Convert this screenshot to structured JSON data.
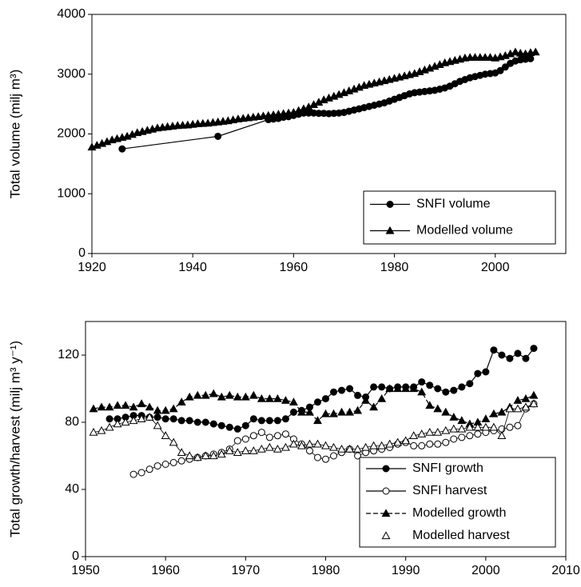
{
  "chart_data": [
    {
      "type": "line",
      "ylabel": "Total volume (milj m³)",
      "xlim": [
        1920,
        2014
      ],
      "xticks": [
        1920,
        1940,
        1960,
        1980,
        2000
      ],
      "ylim": [
        0,
        4000
      ],
      "yticks": [
        0,
        1000,
        2000,
        3000,
        4000
      ],
      "legend": "lower right",
      "series": [
        {
          "name": "SNFI volume",
          "color": "#000000",
          "marker": "circle",
          "filled": true,
          "dash": false,
          "x": [
            1926,
            1945,
            1955,
            1956,
            1957,
            1958,
            1959,
            1960,
            1961,
            1962,
            1963,
            1964,
            1965,
            1966,
            1967,
            1968,
            1969,
            1970,
            1971,
            1972,
            1973,
            1974,
            1975,
            1976,
            1977,
            1978,
            1979,
            1980,
            1981,
            1982,
            1983,
            1984,
            1985,
            1986,
            1987,
            1988,
            1989,
            1990,
            1991,
            1992,
            1993,
            1994,
            1995,
            1996,
            1997,
            1998,
            1999,
            2000,
            2001,
            2002,
            2003,
            2004,
            2005,
            2006,
            2007
          ],
          "values": [
            1750,
            1960,
            2240,
            2250,
            2260,
            2280,
            2290,
            2310,
            2330,
            2350,
            2350,
            2350,
            2345,
            2345,
            2340,
            2345,
            2350,
            2360,
            2380,
            2400,
            2420,
            2440,
            2460,
            2480,
            2500,
            2520,
            2550,
            2580,
            2610,
            2640,
            2670,
            2690,
            2700,
            2710,
            2720,
            2730,
            2750,
            2770,
            2800,
            2840,
            2880,
            2910,
            2940,
            2960,
            2980,
            3000,
            3010,
            3020,
            3060,
            3120,
            3180,
            3220,
            3240,
            3250,
            3260
          ]
        },
        {
          "name": "Modelled volume",
          "color": "#000000",
          "marker": "triangle",
          "filled": true,
          "dash": false,
          "x": [
            1920,
            1921,
            1922,
            1923,
            1924,
            1925,
            1926,
            1927,
            1928,
            1929,
            1930,
            1931,
            1932,
            1933,
            1934,
            1935,
            1936,
            1937,
            1938,
            1939,
            1940,
            1941,
            1942,
            1943,
            1944,
            1945,
            1946,
            1947,
            1948,
            1949,
            1950,
            1951,
            1952,
            1953,
            1954,
            1955,
            1956,
            1957,
            1958,
            1959,
            1960,
            1961,
            1962,
            1963,
            1964,
            1965,
            1966,
            1967,
            1968,
            1969,
            1970,
            1971,
            1972,
            1973,
            1974,
            1975,
            1976,
            1977,
            1978,
            1979,
            1980,
            1981,
            1982,
            1983,
            1984,
            1985,
            1986,
            1987,
            1988,
            1989,
            1990,
            1991,
            1992,
            1993,
            1994,
            1995,
            1996,
            1997,
            1998,
            1999,
            2000,
            2001,
            2002,
            2003,
            2004,
            2005,
            2006,
            2007,
            2008
          ],
          "values": [
            1780,
            1810,
            1840,
            1870,
            1900,
            1920,
            1940,
            1960,
            1990,
            2020,
            2040,
            2060,
            2080,
            2100,
            2110,
            2120,
            2130,
            2140,
            2145,
            2150,
            2160,
            2170,
            2175,
            2180,
            2190,
            2200,
            2210,
            2220,
            2235,
            2250,
            2260,
            2270,
            2280,
            2290,
            2300,
            2310,
            2320,
            2330,
            2340,
            2350,
            2360,
            2390,
            2420,
            2450,
            2490,
            2530,
            2570,
            2600,
            2630,
            2660,
            2690,
            2720,
            2750,
            2780,
            2810,
            2830,
            2850,
            2870,
            2890,
            2910,
            2930,
            2950,
            2970,
            2990,
            3010,
            3040,
            3070,
            3100,
            3130,
            3160,
            3190,
            3210,
            3230,
            3250,
            3270,
            3280,
            3280,
            3280,
            3280,
            3280,
            3270,
            3290,
            3310,
            3340,
            3370,
            3350,
            3340,
            3360,
            3370
          ]
        }
      ]
    },
    {
      "type": "line",
      "ylabel": "Total growth/harvest (milj m³ y⁻¹)",
      "xlim": [
        1950,
        2010
      ],
      "xticks": [
        1950,
        1960,
        1970,
        1980,
        1990,
        2000,
        2010
      ],
      "ylim": [
        0,
        140
      ],
      "yticks": [
        0,
        40,
        80,
        120
      ],
      "legend": "lower right",
      "series": [
        {
          "name": "SNFI growth",
          "color": "#000000",
          "marker": "circle",
          "filled": true,
          "dash": false,
          "x": [
            1953,
            1954,
            1955,
            1956,
            1957,
            1958,
            1959,
            1960,
            1961,
            1962,
            1963,
            1964,
            1965,
            1966,
            1967,
            1968,
            1969,
            1970,
            1971,
            1972,
            1973,
            1974,
            1975,
            1976,
            1977,
            1978,
            1979,
            1980,
            1981,
            1982,
            1983,
            1984,
            1985,
            1986,
            1987,
            1988,
            1989,
            1990,
            1991,
            1992,
            1993,
            1994,
            1995,
            1996,
            1997,
            1998,
            1999,
            2000,
            2001,
            2002,
            2003,
            2004,
            2005,
            2006
          ],
          "values": [
            82,
            82,
            83,
            84,
            84,
            83,
            83,
            82,
            82,
            81,
            81,
            80,
            80,
            79,
            78,
            77,
            76,
            78,
            82,
            81,
            81,
            81,
            82,
            86,
            87,
            89,
            92,
            94,
            98,
            99,
            100,
            96,
            95,
            101,
            101,
            100,
            101,
            101,
            101,
            104,
            102,
            100,
            98,
            99,
            101,
            103,
            109,
            110,
            123,
            120,
            118,
            121,
            118,
            124
          ]
        },
        {
          "name": "SNFI harvest",
          "color": "#000000",
          "marker": "circle",
          "filled": false,
          "dash": false,
          "x": [
            1956,
            1957,
            1958,
            1959,
            1960,
            1961,
            1962,
            1963,
            1964,
            1965,
            1966,
            1967,
            1968,
            1969,
            1970,
            1971,
            1972,
            1973,
            1974,
            1975,
            1976,
            1977,
            1978,
            1979,
            1980,
            1981,
            1982,
            1983,
            1984,
            1985,
            1986,
            1987,
            1988,
            1989,
            1990,
            1991,
            1992,
            1993,
            1994,
            1995,
            1996,
            1997,
            1998,
            1999,
            2000,
            2001,
            2002,
            2003,
            2004,
            2005,
            2006
          ],
          "values": [
            49,
            50,
            52,
            54,
            55,
            56,
            57,
            58,
            59,
            60,
            61,
            62,
            64,
            69,
            70,
            72,
            74,
            71,
            72,
            73,
            70,
            67,
            63,
            59,
            58,
            60,
            62,
            64,
            60,
            62,
            63,
            64,
            65,
            67,
            68,
            66,
            66,
            67,
            67,
            68,
            70,
            71,
            72,
            73,
            74,
            75,
            76,
            77,
            78,
            88,
            91
          ]
        },
        {
          "name": "Modelled growth",
          "color": "#000000",
          "marker": "triangle",
          "filled": true,
          "dash": true,
          "x": [
            1951,
            1952,
            1953,
            1954,
            1955,
            1956,
            1957,
            1958,
            1959,
            1960,
            1961,
            1962,
            1963,
            1964,
            1965,
            1966,
            1967,
            1968,
            1969,
            1970,
            1971,
            1972,
            1973,
            1974,
            1975,
            1976,
            1977,
            1978,
            1979,
            1980,
            1981,
            1982,
            1983,
            1984,
            1985,
            1986,
            1987,
            1988,
            1989,
            1990,
            1991,
            1992,
            1993,
            1994,
            1995,
            1996,
            1997,
            1998,
            1999,
            2000,
            2001,
            2002,
            2003,
            2004,
            2005,
            2006
          ],
          "values": [
            88,
            89,
            89,
            90,
            90,
            89,
            91,
            89,
            87,
            87,
            88,
            92,
            95,
            96,
            96,
            97,
            95,
            96,
            95,
            95,
            96,
            94,
            94,
            94,
            93,
            92,
            86,
            86,
            81,
            85,
            85,
            86,
            86,
            87,
            93,
            89,
            94,
            100,
            100,
            100,
            100,
            98,
            90,
            88,
            86,
            83,
            81,
            79,
            80,
            82,
            85,
            86,
            89,
            93,
            94,
            96
          ]
        },
        {
          "name": "Modelled harvest",
          "color": "#000000",
          "marker": "triangle",
          "filled": false,
          "dash": false,
          "x": [
            1951,
            1952,
            1953,
            1954,
            1955,
            1956,
            1957,
            1958,
            1959,
            1960,
            1961,
            1962,
            1963,
            1964,
            1965,
            1966,
            1967,
            1968,
            1969,
            1970,
            1971,
            1972,
            1973,
            1974,
            1975,
            1976,
            1977,
            1978,
            1979,
            1980,
            1981,
            1982,
            1983,
            1984,
            1985,
            1986,
            1987,
            1988,
            1989,
            1990,
            1991,
            1992,
            1993,
            1994,
            1995,
            1996,
            1997,
            1998,
            1999,
            2000,
            2001,
            2002,
            2003,
            2004,
            2005,
            2006
          ],
          "values": [
            74,
            75,
            77,
            79,
            80,
            81,
            82,
            83,
            78,
            72,
            68,
            62,
            60,
            59,
            60,
            60,
            61,
            63,
            62,
            63,
            63,
            64,
            65,
            64,
            65,
            67,
            66,
            67,
            67,
            66,
            65,
            64,
            64,
            64,
            65,
            66,
            66,
            67,
            68,
            69,
            72,
            73,
            74,
            74,
            75,
            76,
            76,
            77,
            77,
            77,
            77,
            72,
            88,
            88,
            89,
            91
          ]
        }
      ]
    }
  ]
}
